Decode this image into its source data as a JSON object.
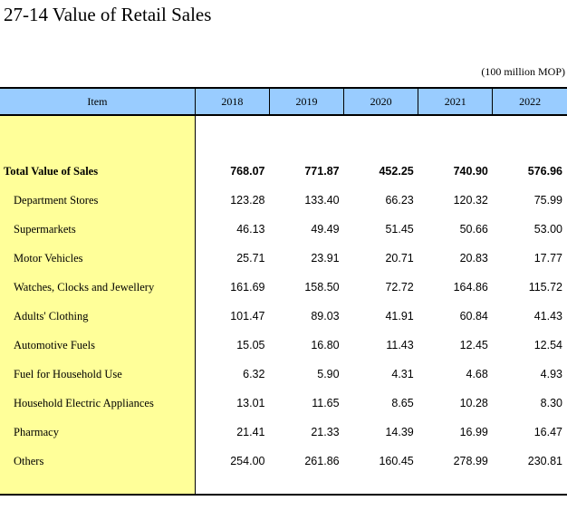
{
  "title": "27-14  Value of Retail Sales",
  "unit": "(100 million MOP)",
  "header": {
    "item": "Item",
    "years": [
      "2018",
      "2019",
      "2020",
      "2021",
      "2022"
    ]
  },
  "total": {
    "label": "Total Value of Sales",
    "values": [
      "768.07",
      "771.87",
      "452.25",
      "740.90",
      "576.96"
    ]
  },
  "rows": [
    {
      "label": "Department Stores",
      "values": [
        "123.28",
        "133.40",
        "66.23",
        "120.32",
        "75.99"
      ]
    },
    {
      "label": "Supermarkets",
      "values": [
        "46.13",
        "49.49",
        "51.45",
        "50.66",
        "53.00"
      ]
    },
    {
      "label": "Motor Vehicles",
      "values": [
        "25.71",
        "23.91",
        "20.71",
        "20.83",
        "17.77"
      ]
    },
    {
      "label": "Watches, Clocks and Jewellery",
      "values": [
        "161.69",
        "158.50",
        "72.72",
        "164.86",
        "115.72"
      ]
    },
    {
      "label": "Adults' Clothing",
      "values": [
        "101.47",
        "89.03",
        "41.91",
        "60.84",
        "41.43"
      ]
    },
    {
      "label": "Automotive Fuels",
      "values": [
        "15.05",
        "16.80",
        "11.43",
        "12.45",
        "12.54"
      ]
    },
    {
      "label": "Fuel for Household Use",
      "values": [
        "6.32",
        "5.90",
        "4.31",
        "4.68",
        "4.93"
      ]
    },
    {
      "label": "Household Electric Appliances",
      "values": [
        "13.01",
        "11.65",
        "8.65",
        "10.28",
        "8.30"
      ]
    },
    {
      "label": "Pharmacy",
      "values": [
        "21.41",
        "21.33",
        "14.39",
        "16.99",
        "16.47"
      ]
    },
    {
      "label": "Others",
      "values": [
        "254.00",
        "261.86",
        "160.45",
        "278.99",
        "230.81"
      ]
    }
  ]
}
